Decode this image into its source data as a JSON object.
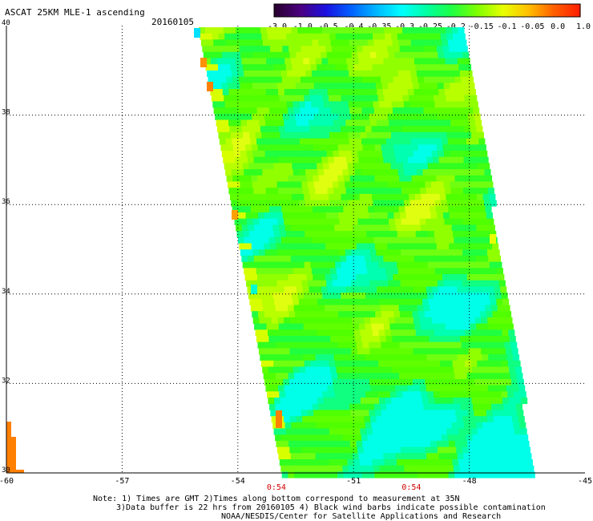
{
  "header": {
    "title": "ASCAT 25KM MLE-1 ascending",
    "date": "20160105"
  },
  "colorbar": {
    "labels": [
      "-3.0",
      "-1.0",
      "-0.5",
      "-0.4",
      "-0.35",
      "-0.3",
      "-0.25",
      "-0.2",
      "-0.15",
      "-0.1",
      "-0.05",
      "0.0",
      "1.0"
    ],
    "colors": [
      "#2a0030",
      "#4a0080",
      "#1a10e0",
      "#0060ff",
      "#00b8ff",
      "#00ffff",
      "#00ffa0",
      "#20ff40",
      "#80ff00",
      "#e8ff00",
      "#ffc000",
      "#ff6000",
      "#ff2000"
    ]
  },
  "map": {
    "lon_ticks": [
      "-60",
      "-57",
      "-54",
      "-51",
      "-48",
      "-45"
    ],
    "lat_ticks": [
      "30",
      "32",
      "34",
      "36",
      "38",
      "40"
    ],
    "time_labels": [
      {
        "lon": -53,
        "text": "0:54"
      },
      {
        "lon": -49.5,
        "text": "0:54"
      }
    ],
    "time_color": "#d00000",
    "lon_range": [
      -60,
      -45
    ],
    "lat_range": [
      30,
      40
    ],
    "gridlines": "dotted"
  },
  "notes": {
    "line1": "Note: 1) Times are GMT 2)Times along bottom correspond to measurement at 35N",
    "line2": "3)Data buffer is 22 hrs from 20160105 4) Black wind barbs indicate possible contamination",
    "line3": "NOAA/NESDIS/Center for Satellite Applications and Research"
  }
}
